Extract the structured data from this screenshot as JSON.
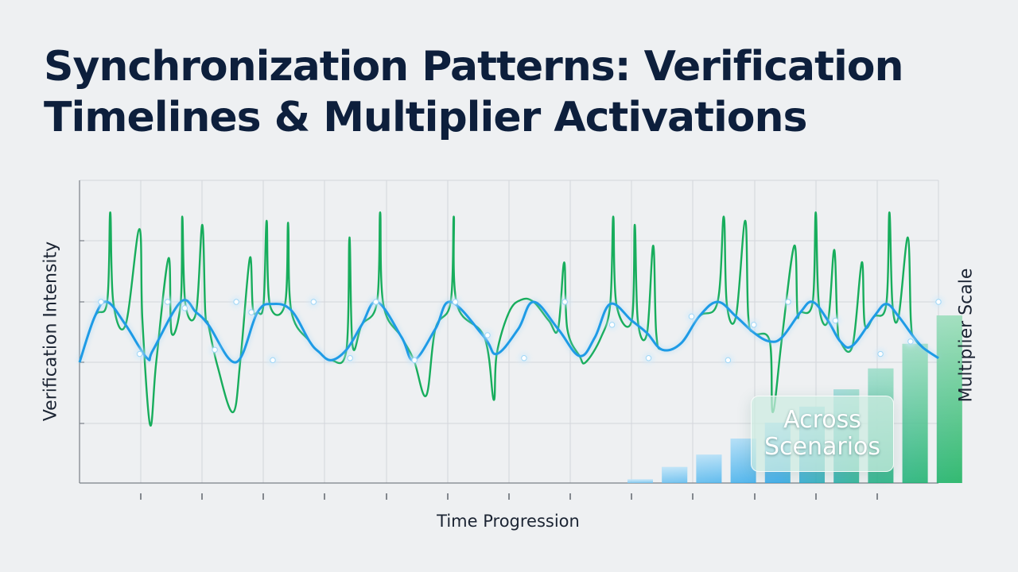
{
  "chart_data": {
    "type": "line",
    "title_lines": [
      "Synchronization Patterns: Verification",
      "Timelines & Multiplier Activations"
    ],
    "xlabel": "Time Progression",
    "ylabel": "Verification Intensity",
    "y2label": "Multiplier Scale",
    "annotation_lines": [
      "Across",
      "Scenarios"
    ],
    "grid": true,
    "legend": "none",
    "colors": {
      "blue": "#1e9be6",
      "green": "#17ad5c",
      "grid": "#d3d6db",
      "axis": "#7a7f87",
      "title": "#0d1f3c"
    },
    "series": [
      {
        "id": "blue-wave",
        "points": [
          [
            0,
            0.6
          ],
          [
            0.5,
            1.7
          ],
          [
            0.9,
            2.05
          ],
          [
            1.5,
            1.5
          ],
          [
            2.2,
            0.7
          ],
          [
            2.4,
            0.9
          ],
          [
            3.3,
            2.05
          ],
          [
            3.8,
            1.8
          ],
          [
            4.2,
            1.5
          ],
          [
            5.1,
            0.6
          ],
          [
            5.8,
            1.8
          ],
          [
            6.3,
            2.0
          ],
          [
            6.9,
            1.85
          ],
          [
            7.5,
            1.1
          ],
          [
            7.8,
            0.85
          ],
          [
            8.2,
            0.65
          ],
          [
            8.7,
            0.9
          ],
          [
            9.2,
            1.5
          ],
          [
            9.7,
            2.05
          ],
          [
            10.5,
            1.2
          ],
          [
            10.9,
            0.65
          ],
          [
            11.6,
            1.4
          ],
          [
            12.1,
            2.05
          ],
          [
            13.2,
            1.2
          ],
          [
            13.6,
            0.8
          ],
          [
            14.3,
            1.4
          ],
          [
            14.8,
            2.05
          ],
          [
            15.6,
            1.4
          ],
          [
            16.3,
            0.75
          ],
          [
            16.8,
            1.2
          ],
          [
            17.3,
            2.0
          ],
          [
            18.0,
            1.6
          ],
          [
            18.5,
            1.3
          ],
          [
            19.0,
            0.9
          ],
          [
            19.6,
            1.05
          ],
          [
            20.2,
            1.7
          ],
          [
            20.8,
            2.05
          ],
          [
            21.4,
            1.7
          ],
          [
            22.0,
            1.3
          ],
          [
            22.5,
            1.1
          ],
          [
            22.9,
            1.2
          ],
          [
            23.5,
            1.8
          ],
          [
            23.9,
            2.05
          ],
          [
            24.4,
            1.6
          ],
          [
            24.8,
            1.1
          ],
          [
            25.2,
            1.0
          ],
          [
            25.9,
            1.7
          ],
          [
            26.3,
            2.0
          ],
          [
            26.7,
            1.7
          ],
          [
            27.2,
            1.2
          ],
          [
            27.5,
            0.95
          ],
          [
            28.0,
            0.7
          ]
        ]
      },
      {
        "id": "green-spikes",
        "points": [
          [
            0,
            0.6
          ],
          [
            0.5,
            1.7
          ],
          [
            0.9,
            2.05
          ],
          [
            1.0,
            4.2
          ],
          [
            1.1,
            2.05
          ],
          [
            1.5,
            1.5
          ],
          [
            1.95,
            3.8
          ],
          [
            2.05,
            1.6
          ],
          [
            2.3,
            -0.9
          ],
          [
            2.5,
            0.6
          ],
          [
            2.9,
            3.1
          ],
          [
            3.0,
            1.3
          ],
          [
            3.3,
            2.05
          ],
          [
            3.35,
            4.1
          ],
          [
            3.45,
            2.0
          ],
          [
            3.8,
            1.8
          ],
          [
            4.0,
            3.9
          ],
          [
            4.1,
            1.8
          ],
          [
            4.2,
            1.5
          ],
          [
            4.5,
            0.5
          ],
          [
            5.0,
            -0.6
          ],
          [
            5.25,
            0.7
          ],
          [
            5.55,
            3.1
          ],
          [
            5.65,
            1.9
          ],
          [
            5.8,
            1.8
          ],
          [
            6.0,
            2.0
          ],
          [
            6.1,
            4.0
          ],
          [
            6.2,
            2.0
          ],
          [
            6.7,
            2.0
          ],
          [
            6.8,
            3.95
          ],
          [
            6.9,
            1.85
          ],
          [
            7.5,
            1.1
          ],
          [
            7.8,
            0.85
          ],
          [
            8.2,
            0.65
          ],
          [
            8.7,
            0.9
          ],
          [
            8.8,
            3.6
          ],
          [
            8.9,
            1.0
          ],
          [
            9.2,
            1.5
          ],
          [
            9.7,
            2.05
          ],
          [
            9.8,
            4.2
          ],
          [
            9.9,
            2.0
          ],
          [
            10.5,
            1.2
          ],
          [
            10.9,
            0.65
          ],
          [
            11.3,
            -0.2
          ],
          [
            11.6,
            1.4
          ],
          [
            12.1,
            2.05
          ],
          [
            12.2,
            4.1
          ],
          [
            12.3,
            2.0
          ],
          [
            13.2,
            1.2
          ],
          [
            13.5,
            -0.3
          ],
          [
            13.6,
            0.8
          ],
          [
            14.0,
            1.8
          ],
          [
            14.4,
            2.1
          ],
          [
            14.8,
            2.05
          ],
          [
            15.3,
            1.6
          ],
          [
            15.6,
            1.4
          ],
          [
            15.8,
            3.0
          ],
          [
            15.9,
            1.4
          ],
          [
            16.3,
            0.75
          ],
          [
            16.5,
            0.6
          ],
          [
            17.0,
            1.2
          ],
          [
            17.3,
            2.0
          ],
          [
            17.4,
            4.1
          ],
          [
            17.5,
            2.0
          ],
          [
            18.0,
            1.6
          ],
          [
            18.1,
            3.9
          ],
          [
            18.2,
            1.6
          ],
          [
            18.5,
            1.3
          ],
          [
            18.7,
            3.4
          ],
          [
            18.8,
            1.3
          ],
          [
            19.0,
            0.9
          ],
          [
            19.6,
            1.05
          ],
          [
            20.2,
            1.7
          ],
          [
            20.8,
            2.05
          ],
          [
            21.0,
            4.1
          ],
          [
            21.1,
            2.0
          ],
          [
            21.4,
            1.7
          ],
          [
            21.7,
            4.0
          ],
          [
            21.8,
            1.7
          ],
          [
            22.0,
            1.3
          ],
          [
            22.5,
            1.1
          ],
          [
            22.6,
            -0.6
          ],
          [
            22.9,
            1.2
          ],
          [
            23.3,
            3.4
          ],
          [
            23.4,
            1.8
          ],
          [
            23.5,
            1.8
          ],
          [
            23.9,
            2.05
          ],
          [
            24.0,
            4.2
          ],
          [
            24.1,
            2.0
          ],
          [
            24.4,
            1.6
          ],
          [
            24.6,
            3.3
          ],
          [
            24.7,
            1.6
          ],
          [
            24.8,
            1.1
          ],
          [
            25.2,
            1.0
          ],
          [
            25.5,
            3.0
          ],
          [
            25.6,
            1.5
          ],
          [
            25.9,
            1.7
          ],
          [
            26.3,
            2.0
          ],
          [
            26.4,
            4.2
          ],
          [
            26.5,
            2.0
          ],
          [
            26.7,
            1.7
          ],
          [
            27.0,
            3.6
          ],
          [
            27.1,
            1.6
          ],
          [
            27.2,
            1.2
          ],
          [
            27.5,
            0.95
          ],
          [
            28.0,
            0.7
          ]
        ]
      }
    ],
    "highlight_points": [
      [
        1.0,
        2.05
      ],
      [
        2.8,
        0.8
      ],
      [
        4.1,
        2.05
      ],
      [
        4.9,
        1.9
      ],
      [
        6.3,
        0.9
      ],
      [
        7.3,
        2.05
      ],
      [
        8.0,
        1.8
      ],
      [
        9.0,
        0.65
      ],
      [
        10.9,
        2.05
      ],
      [
        12.6,
        0.7
      ],
      [
        13.8,
        2.05
      ],
      [
        15.6,
        0.65
      ],
      [
        17.5,
        2.05
      ],
      [
        19.0,
        1.25
      ],
      [
        20.7,
        0.7
      ],
      [
        22.6,
        2.05
      ],
      [
        24.8,
        1.5
      ],
      [
        26.5,
        0.7
      ],
      [
        28.5,
        1.7
      ],
      [
        30.2,
        0.65
      ],
      [
        31.4,
        1.5
      ],
      [
        33.0,
        2.05
      ],
      [
        35.2,
        1.6
      ],
      [
        37.3,
        0.8
      ],
      [
        38.7,
        1.1
      ],
      [
        40.0,
        2.05
      ]
    ],
    "bars": [
      0.3,
      1.3,
      2.3,
      3.6,
      4.9,
      6.2,
      7.6,
      9.3,
      11.3,
      13.6
    ],
    "bars_max": 16
  }
}
